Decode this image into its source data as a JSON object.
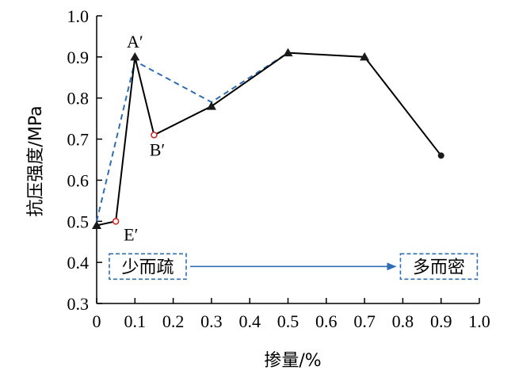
{
  "chart_data": {
    "type": "line",
    "title": "",
    "xlabel": "掺量/%",
    "ylabel": "抗压强度/MPa",
    "xlim": [
      0,
      1.0
    ],
    "ylim": [
      0.3,
      1.0
    ],
    "x_ticks": [
      "0",
      "0.1",
      "0.2",
      "0.3",
      "0.4",
      "0.5",
      "0.6",
      "0.7",
      "0.8",
      "0.9",
      "1.0"
    ],
    "y_ticks": [
      "0.3",
      "0.4",
      "0.5",
      "0.6",
      "0.7",
      "0.8",
      "0.9",
      "1.0"
    ],
    "grid": false,
    "series": [
      {
        "style": "solid",
        "color": "#000000",
        "points": [
          {
            "x": 0,
            "y": 0.49,
            "marker": "triangle"
          },
          {
            "x": 0.05,
            "y": 0.5,
            "marker": "open-circle"
          },
          {
            "x": 0.1,
            "y": 0.9,
            "marker": "triangle"
          },
          {
            "x": 0.15,
            "y": 0.71,
            "marker": "open-circle"
          },
          {
            "x": 0.3,
            "y": 0.78,
            "marker": "triangle"
          },
          {
            "x": 0.5,
            "y": 0.91,
            "marker": "triangle"
          },
          {
            "x": 0.7,
            "y": 0.9,
            "marker": "triangle"
          },
          {
            "x": 0.9,
            "y": 0.66,
            "marker": "circle"
          }
        ]
      },
      {
        "style": "dashed",
        "color": "#2e6db4",
        "points": [
          {
            "x": 0,
            "y": 0.5
          },
          {
            "x": 0.1,
            "y": 0.89
          },
          {
            "x": 0.3,
            "y": 0.79
          },
          {
            "x": 0.5,
            "y": 0.91
          }
        ]
      }
    ],
    "annotations": [
      {
        "text": "A′",
        "x": 0.1,
        "y": 0.9,
        "anchor": "above"
      },
      {
        "text": "B′",
        "x": 0.15,
        "y": 0.71,
        "anchor": "below"
      },
      {
        "text": "E′",
        "x": 0.05,
        "y": 0.5,
        "anchor": "below-right"
      }
    ],
    "arrow": {
      "from_label": "少而疏",
      "to_label": "多而密",
      "y": 0.39,
      "from_x": 0.0,
      "to_x": 0.8,
      "color": "#2e6db4"
    }
  }
}
